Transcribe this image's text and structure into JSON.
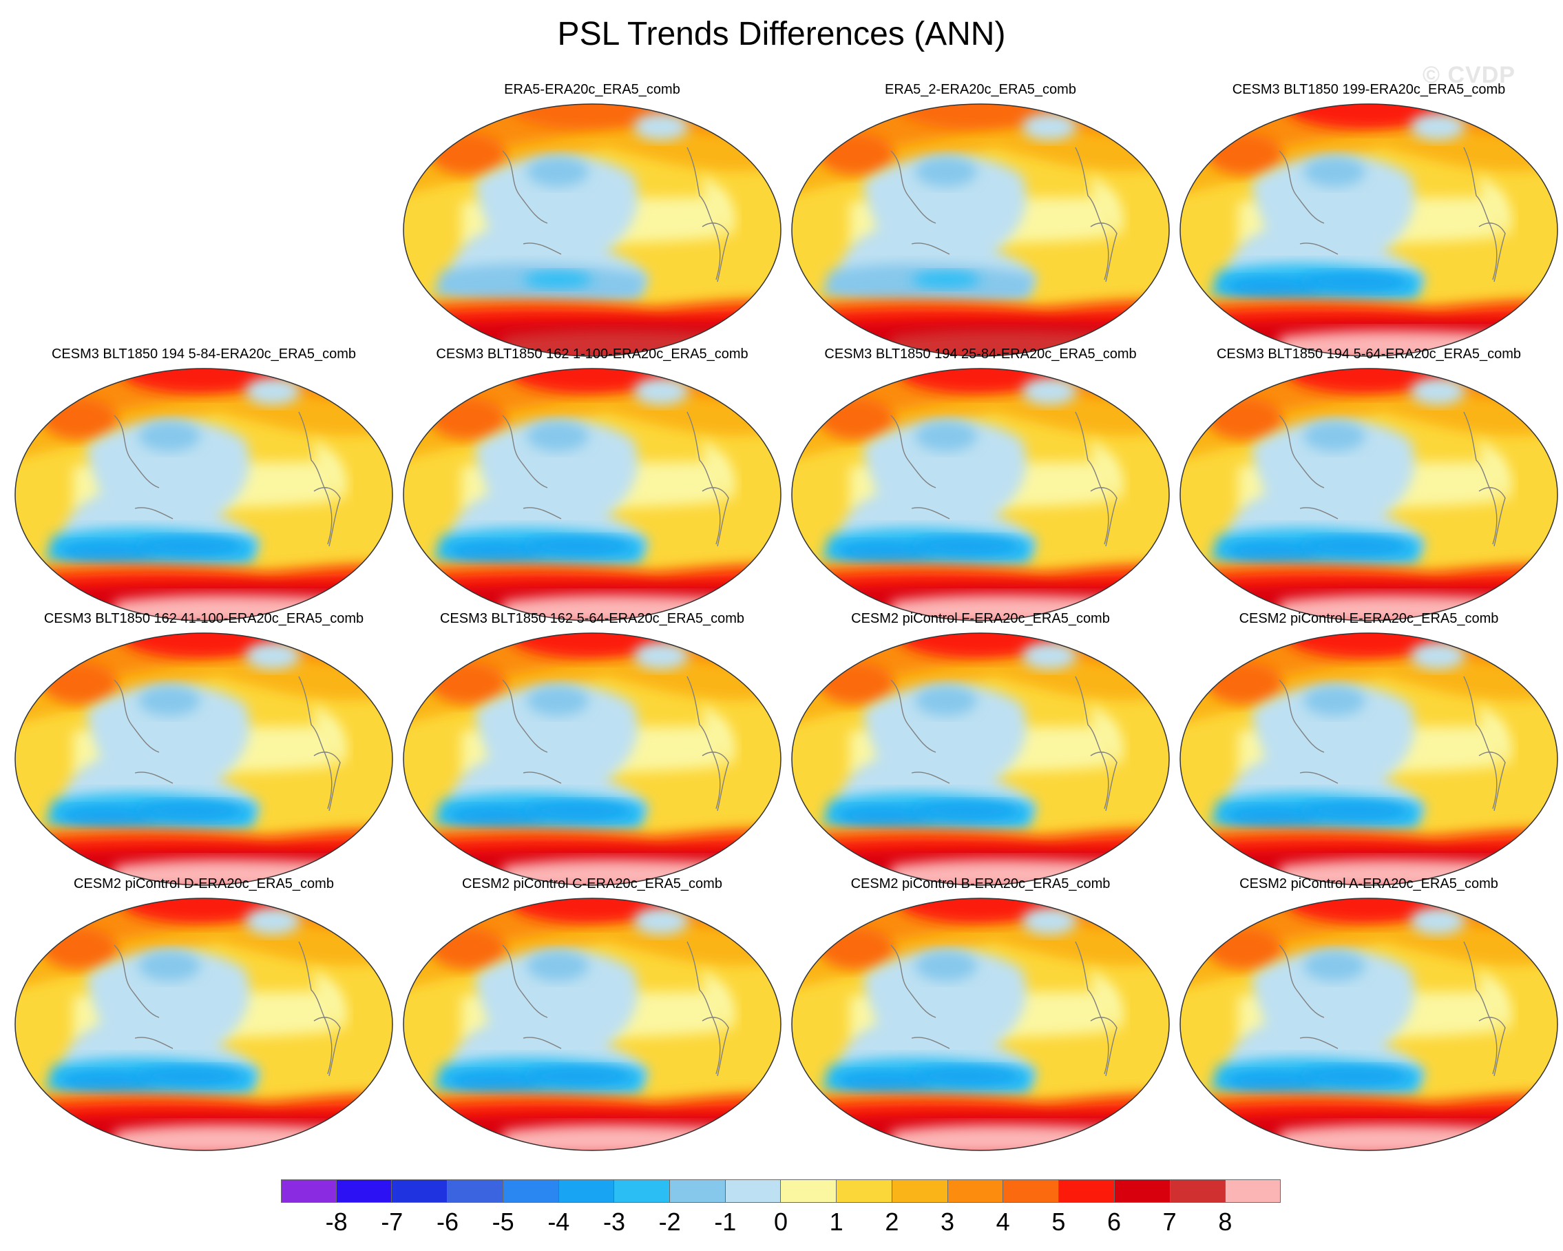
{
  "title": "PSL Trends Differences (ANN)",
  "watermark": "© CVDP",
  "panels": [
    {
      "label": "ERA5-ERA20c_ERA5_comb",
      "variant": "ref"
    },
    {
      "label": "ERA5_2-ERA20c_ERA5_comb",
      "variant": "ref"
    },
    {
      "label": "CESM3 BLT1850 199-ERA20c_ERA5_comb",
      "variant": "model"
    },
    {
      "label": "CESM3 BLT1850 194 5-84-ERA20c_ERA5_comb",
      "variant": "model"
    },
    {
      "label": "CESM3 BLT1850 162 1-100-ERA20c_ERA5_comb",
      "variant": "model"
    },
    {
      "label": "CESM3 BLT1850 194 25-84-ERA20c_ERA5_comb",
      "variant": "model"
    },
    {
      "label": "CESM3 BLT1850 194 5-64-ERA20c_ERA5_comb",
      "variant": "model"
    },
    {
      "label": "CESM3 BLT1850 162 41-100-ERA20c_ERA5_comb",
      "variant": "model"
    },
    {
      "label": "CESM3 BLT1850 162 5-64-ERA20c_ERA5_comb",
      "variant": "model"
    },
    {
      "label": "CESM2 piControl F-ERA20c_ERA5_comb",
      "variant": "model"
    },
    {
      "label": "CESM2 piControl E-ERA20c_ERA5_comb",
      "variant": "model"
    },
    {
      "label": "CESM2 piControl D-ERA20c_ERA5_comb",
      "variant": "model"
    },
    {
      "label": "CESM2 piControl C-ERA20c_ERA5_comb",
      "variant": "model"
    },
    {
      "label": "CESM2 piControl B-ERA20c_ERA5_comb",
      "variant": "model"
    },
    {
      "label": "CESM2 piControl A-ERA20c_ERA5_comb",
      "variant": "model"
    }
  ],
  "colorbar": {
    "colors": [
      "#8a2be2",
      "#2d11f5",
      "#1f33e0",
      "#3a64e0",
      "#2a86f0",
      "#18a4f2",
      "#2bbef5",
      "#86c8ec",
      "#bde0f2",
      "#fbf6a0",
      "#fcd73a",
      "#fbb417",
      "#fb8c0e",
      "#fb6a0e",
      "#fc1a0a",
      "#d9000e",
      "#d13030",
      "#fcb5b5"
    ],
    "labels": [
      "-8",
      "-7",
      "-6",
      "-5",
      "-4",
      "-3",
      "-2",
      "-1",
      "0",
      "1",
      "2",
      "3",
      "4",
      "5",
      "6",
      "7",
      "8"
    ]
  }
}
